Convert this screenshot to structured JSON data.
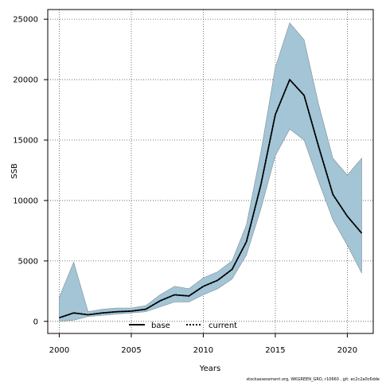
{
  "chart_data": {
    "type": "line",
    "xlabel": "Years",
    "ylabel": "SSB",
    "xlim": [
      1999.2,
      2021.8
    ],
    "ylim": [
      -1000,
      25800
    ],
    "x_ticks": [
      2000,
      2005,
      2010,
      2015,
      2020
    ],
    "y_ticks": [
      0,
      5000,
      10000,
      15000,
      20000,
      25000
    ],
    "grid": true,
    "legend_position": "bottom-center",
    "colors": {
      "band": "#a3c5d6",
      "band_edge": "#7f8f99",
      "line": "#000000",
      "grid": "#555555"
    },
    "x": [
      2000,
      2001,
      2002,
      2003,
      2004,
      2005,
      2006,
      2007,
      2008,
      2009,
      2010,
      2011,
      2012,
      2013,
      2014,
      2015,
      2016,
      2017,
      2018,
      2019,
      2020,
      2021
    ],
    "band_upper": [
      2000,
      4900,
      800,
      1000,
      1100,
      1100,
      1300,
      2200,
      2900,
      2700,
      3600,
      4100,
      5000,
      8000,
      14000,
      21000,
      24700,
      23300,
      18000,
      13500,
      12100,
      13500
    ],
    "band_lower": [
      0,
      100,
      400,
      500,
      600,
      700,
      800,
      1200,
      1600,
      1600,
      2200,
      2700,
      3500,
      5500,
      9300,
      13700,
      15900,
      15000,
      11600,
      8400,
      6300,
      4000
    ],
    "series": [
      {
        "name": "base",
        "style": "solid",
        "values": [
          300,
          700,
          550,
          700,
          800,
          850,
          1000,
          1700,
          2200,
          2100,
          2900,
          3400,
          4300,
          6600,
          11300,
          17100,
          20000,
          18700,
          14500,
          10500,
          8700,
          7300
        ]
      },
      {
        "name": "current",
        "style": "dotted",
        "values": [
          300,
          700,
          550,
          700,
          800,
          850,
          1000,
          1700,
          2200,
          2100,
          2900,
          3400,
          4300,
          6600,
          11300,
          17100,
          20000,
          18700,
          14500,
          10500,
          8700,
          7300
        ]
      }
    ],
    "footnote": "stockassessment.org, WKGREEN_GRO, r10660 , git: ec2c2a0c6dde"
  }
}
